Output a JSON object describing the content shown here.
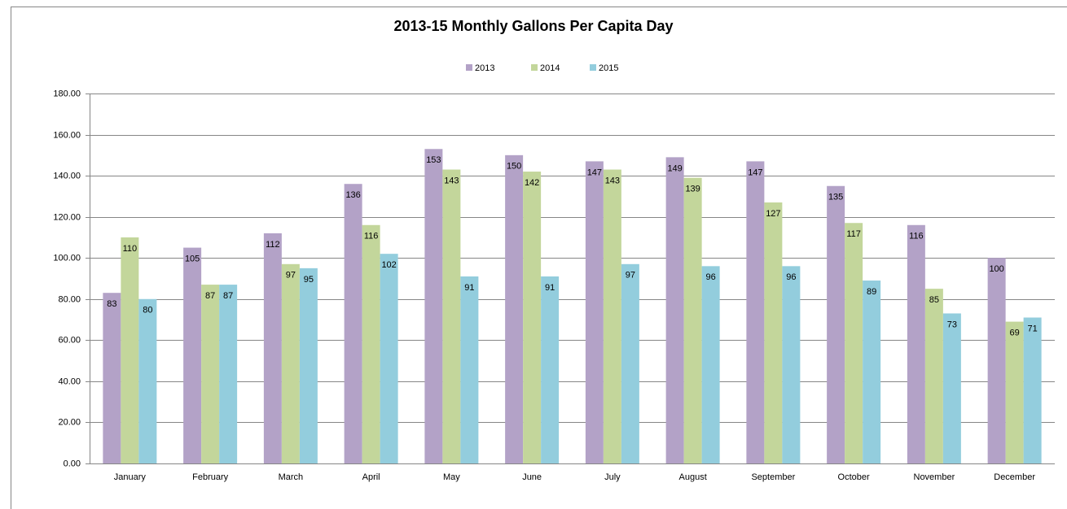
{
  "chart_data": {
    "type": "bar",
    "title": "2013-15 Monthly Gallons Per Capita Day",
    "categories": [
      "January",
      "February",
      "March",
      "April",
      "May",
      "June",
      "July",
      "August",
      "September",
      "October",
      "November",
      "December"
    ],
    "series": [
      {
        "name": "2013",
        "color": "#b3a2c7",
        "values": [
          83,
          105,
          112,
          136,
          153,
          150,
          147,
          149,
          147,
          135,
          116,
          100
        ]
      },
      {
        "name": "2014",
        "color": "#c3d69b",
        "values": [
          110,
          87,
          97,
          116,
          143,
          142,
          143,
          139,
          127,
          117,
          85,
          69
        ]
      },
      {
        "name": "2015",
        "color": "#93cddd",
        "values": [
          80,
          87,
          95,
          102,
          91,
          91,
          97,
          96,
          96,
          89,
          73,
          71
        ]
      }
    ],
    "ylim": [
      0,
      180
    ],
    "yticks": [
      {
        "value": 0,
        "label": "0.00"
      },
      {
        "value": 20,
        "label": "20.00"
      },
      {
        "value": 40,
        "label": "40.00"
      },
      {
        "value": 60,
        "label": "60.00"
      },
      {
        "value": 80,
        "label": "80.00"
      },
      {
        "value": 100,
        "label": "100.00"
      },
      {
        "value": 120,
        "label": "120.00"
      },
      {
        "value": 140,
        "label": "140.00"
      },
      {
        "value": 160,
        "label": "160.00"
      },
      {
        "value": 180,
        "label": "180.00"
      }
    ],
    "grid": true,
    "legend": "top"
  }
}
